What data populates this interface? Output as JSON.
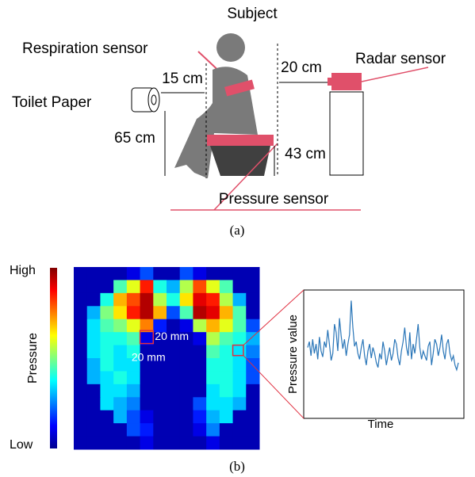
{
  "panel_a": {
    "subject": "Subject",
    "respiration_sensor": "Respiration sensor",
    "radar_sensor": "Radar sensor",
    "toilet_paper": "Toilet Paper",
    "dist_paper": "15 cm",
    "dist_radar": "20 cm",
    "height_paper": "65 cm",
    "height_seat": "43 cm",
    "pressure_sensor": "Pressure sensor",
    "caption": "(a)"
  },
  "panel_b": {
    "colorbar_high": "High",
    "colorbar_low": "Low",
    "colorbar_label": "Pressure",
    "cell_width": "20 mm",
    "cell_height": "20 mm",
    "plot_ylabel": "Pressure value",
    "plot_xlabel": "Time",
    "caption": "(b)",
    "heatmap": [
      [
        5,
        5,
        5,
        5,
        10,
        20,
        5,
        5,
        20,
        10,
        5,
        5,
        5,
        5
      ],
      [
        5,
        5,
        5,
        45,
        60,
        85,
        40,
        30,
        55,
        80,
        60,
        45,
        5,
        5
      ],
      [
        5,
        5,
        40,
        70,
        80,
        95,
        55,
        40,
        65,
        90,
        85,
        55,
        30,
        5
      ],
      [
        5,
        30,
        50,
        65,
        85,
        95,
        70,
        20,
        45,
        95,
        90,
        70,
        45,
        5
      ],
      [
        5,
        35,
        45,
        50,
        60,
        75,
        15,
        5,
        10,
        55,
        70,
        60,
        45,
        20
      ],
      [
        5,
        35,
        40,
        40,
        45,
        10,
        5,
        5,
        5,
        10,
        55,
        45,
        40,
        30
      ],
      [
        5,
        35,
        40,
        35,
        40,
        5,
        5,
        5,
        5,
        5,
        45,
        40,
        35,
        25
      ],
      [
        5,
        30,
        40,
        35,
        35,
        5,
        5,
        5,
        5,
        5,
        40,
        40,
        35,
        20
      ],
      [
        5,
        30,
        35,
        40,
        35,
        5,
        5,
        5,
        5,
        5,
        40,
        40,
        35,
        20
      ],
      [
        5,
        5,
        35,
        35,
        30,
        5,
        5,
        5,
        5,
        5,
        35,
        40,
        35,
        5
      ],
      [
        5,
        5,
        35,
        30,
        25,
        5,
        5,
        5,
        5,
        20,
        35,
        35,
        30,
        5
      ],
      [
        5,
        5,
        5,
        30,
        20,
        10,
        5,
        5,
        5,
        15,
        30,
        35,
        5,
        5
      ],
      [
        5,
        5,
        5,
        5,
        20,
        15,
        5,
        5,
        5,
        10,
        25,
        5,
        5,
        5
      ],
      [
        5,
        5,
        5,
        5,
        5,
        10,
        5,
        5,
        5,
        5,
        10,
        5,
        5,
        5
      ]
    ],
    "signal": [
      55,
      60,
      48,
      62,
      50,
      58,
      45,
      64,
      52,
      47,
      60,
      55,
      70,
      58,
      44,
      50,
      75,
      68,
      52,
      80,
      65,
      54,
      62,
      48,
      58,
      66,
      95,
      72,
      56,
      60,
      50,
      45,
      55,
      62,
      48,
      40,
      52,
      58,
      46,
      55,
      50,
      42,
      38,
      50,
      45,
      60,
      52,
      40,
      48,
      55,
      44,
      50,
      62,
      58,
      46,
      40,
      52,
      60,
      72,
      55,
      48,
      68,
      45,
      58,
      50,
      62,
      75,
      55,
      45,
      52,
      48,
      44,
      56,
      60,
      40,
      50,
      62,
      58,
      48,
      55,
      66,
      52,
      45,
      58,
      62,
      50,
      44,
      48,
      40,
      36,
      42
    ]
  }
}
